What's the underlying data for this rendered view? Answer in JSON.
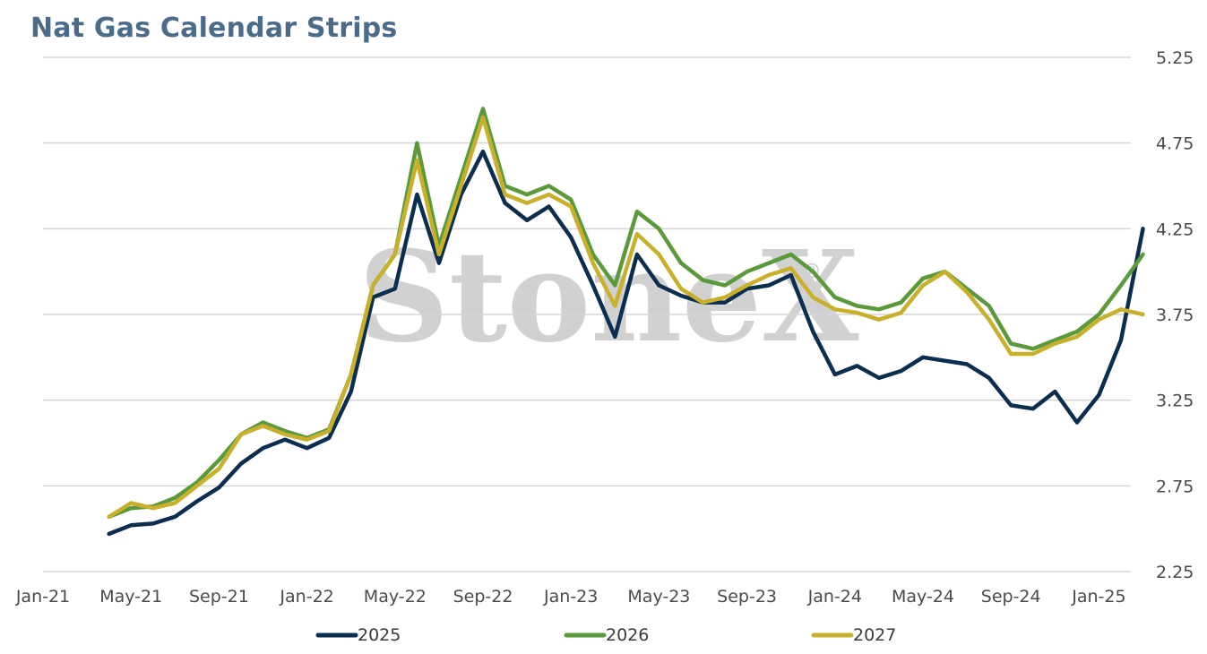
{
  "chart_data": {
    "type": "line",
    "title": "Nat Gas Calendar Strips",
    "watermark": "StoneX",
    "watermark_mark": "®",
    "xlabel": "",
    "ylabel": "",
    "x_ticks": [
      "Jan-21",
      "May-21",
      "Sep-21",
      "Jan-22",
      "May-22",
      "Sep-22",
      "Jan-23",
      "May-23",
      "Sep-23",
      "Jan-24",
      "May-24",
      "Sep-24",
      "Jan-25"
    ],
    "y_ticks": [
      "2.25",
      "2.75",
      "3.25",
      "3.75",
      "4.25",
      "4.75",
      "5.25"
    ],
    "ylim": [
      2.25,
      5.25
    ],
    "y_axis_position": "right",
    "grid": "horizontal",
    "legend_placement": "bottom",
    "x": [
      "Apr-21",
      "May-21",
      "Jun-21",
      "Jul-21",
      "Aug-21",
      "Sep-21",
      "Oct-21",
      "Nov-21",
      "Dec-21",
      "Jan-22",
      "Feb-22",
      "Mar-22",
      "Apr-22",
      "May-22",
      "Jun-22",
      "Jul-22",
      "Aug-22",
      "Sep-22",
      "Oct-22",
      "Nov-22",
      "Dec-22",
      "Jan-23",
      "Feb-23",
      "Mar-23",
      "Apr-23",
      "May-23",
      "Jun-23",
      "Jul-23",
      "Aug-23",
      "Sep-23",
      "Oct-23",
      "Nov-23",
      "Dec-23",
      "Jan-24",
      "Feb-24",
      "Mar-24",
      "Apr-24",
      "May-24",
      "Jun-24",
      "Jul-24",
      "Aug-24",
      "Sep-24",
      "Oct-24",
      "Nov-24",
      "Dec-24",
      "Jan-25",
      "Feb-25",
      "Mar-25"
    ],
    "series": [
      {
        "name": "2025",
        "color": "#0b2d4f",
        "values": [
          2.47,
          2.52,
          2.53,
          2.57,
          2.66,
          2.74,
          2.88,
          2.97,
          3.02,
          2.97,
          3.03,
          3.3,
          3.85,
          3.9,
          4.45,
          4.05,
          4.45,
          4.7,
          4.4,
          4.3,
          4.38,
          4.2,
          3.92,
          3.62,
          4.1,
          3.92,
          3.86,
          3.82,
          3.82,
          3.9,
          3.92,
          3.98,
          3.65,
          3.4,
          3.45,
          3.38,
          3.42,
          3.5,
          3.48,
          3.46,
          3.38,
          3.22,
          3.2,
          3.3,
          3.12,
          3.28,
          3.6,
          4.25
        ]
      },
      {
        "name": "2026",
        "color": "#5a9a3c",
        "values": [
          2.57,
          2.62,
          2.63,
          2.68,
          2.77,
          2.9,
          3.05,
          3.12,
          3.07,
          3.03,
          3.08,
          3.4,
          3.92,
          4.1,
          4.75,
          4.15,
          4.55,
          4.95,
          4.5,
          4.45,
          4.5,
          4.42,
          4.1,
          3.92,
          4.35,
          4.25,
          4.05,
          3.95,
          3.92,
          4.0,
          4.05,
          4.1,
          4.0,
          3.85,
          3.8,
          3.78,
          3.82,
          3.96,
          4.0,
          3.9,
          3.8,
          3.58,
          3.55,
          3.6,
          3.65,
          3.75,
          3.92,
          4.1
        ]
      },
      {
        "name": "2027",
        "color": "#c9b02c",
        "values": [
          2.57,
          2.65,
          2.62,
          2.65,
          2.75,
          2.85,
          3.05,
          3.1,
          3.05,
          3.02,
          3.07,
          3.4,
          3.92,
          4.1,
          4.65,
          4.1,
          4.5,
          4.9,
          4.45,
          4.4,
          4.45,
          4.38,
          4.05,
          3.8,
          4.22,
          4.1,
          3.9,
          3.82,
          3.85,
          3.92,
          3.98,
          4.02,
          3.85,
          3.78,
          3.76,
          3.72,
          3.76,
          3.92,
          4.0,
          3.88,
          3.72,
          3.52,
          3.52,
          3.58,
          3.62,
          3.72,
          3.78,
          3.75
        ]
      }
    ]
  }
}
